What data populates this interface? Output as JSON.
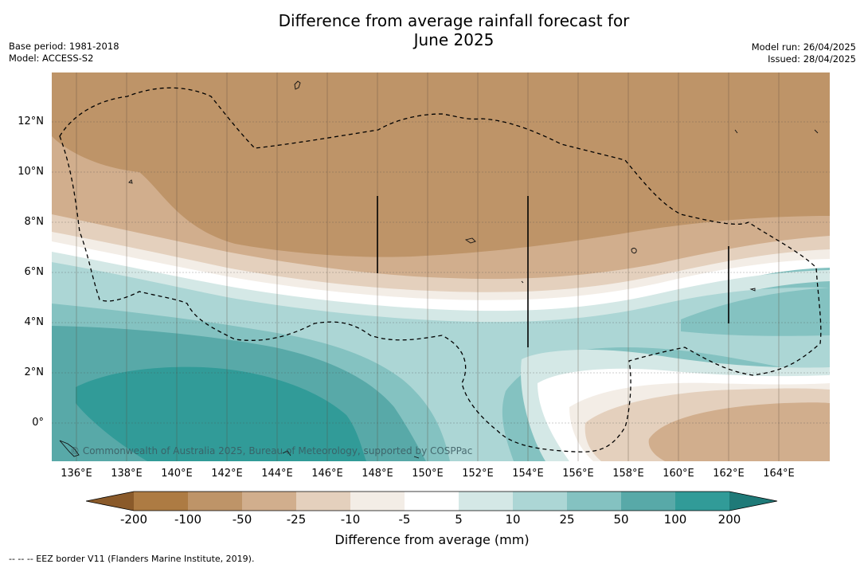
{
  "title_line1": "Difference from average rainfall forecast for",
  "title_line2": "June 2025",
  "base_period": "Base period: 1981-2018",
  "model": "Model: ACCESS-S2",
  "model_run": "Model run: 26/04/2025",
  "issued": "Issued: 28/04/2025",
  "lat_labels": [
    "12°N",
    "10°N",
    "8°N",
    "6°N",
    "4°N",
    "2°N",
    "0°"
  ],
  "lon_labels": [
    "136°E",
    "138°E",
    "140°E",
    "142°E",
    "144°E",
    "146°E",
    "148°E",
    "150°E",
    "152°E",
    "154°E",
    "156°E",
    "158°E",
    "160°E",
    "162°E",
    "164°E"
  ],
  "credit": "© Commonwealth of Australia 2025, Bureau of Meteorology, supported by COSPPac",
  "colorbar": {
    "ticks": [
      "-200",
      "-100",
      "-50",
      "-25",
      "-10",
      "-5",
      "5",
      "10",
      "25",
      "50",
      "100",
      "200"
    ],
    "colors": [
      "#ad7b43",
      "#be9468",
      "#d1ae8d",
      "#e4d0bd",
      "#f3ede6",
      "#ffffff",
      "#d4e8e6",
      "#acd6d5",
      "#84c2c1",
      "#58a9a8",
      "#319b98"
    ],
    "low_extend_color": "#8a5a2a",
    "high_extend_color": "#1f7a78",
    "title": "Difference from average (mm)"
  },
  "eez_note": "--  --  -- EEZ border V11 (Flanders Marine Institute, 2019)."
}
